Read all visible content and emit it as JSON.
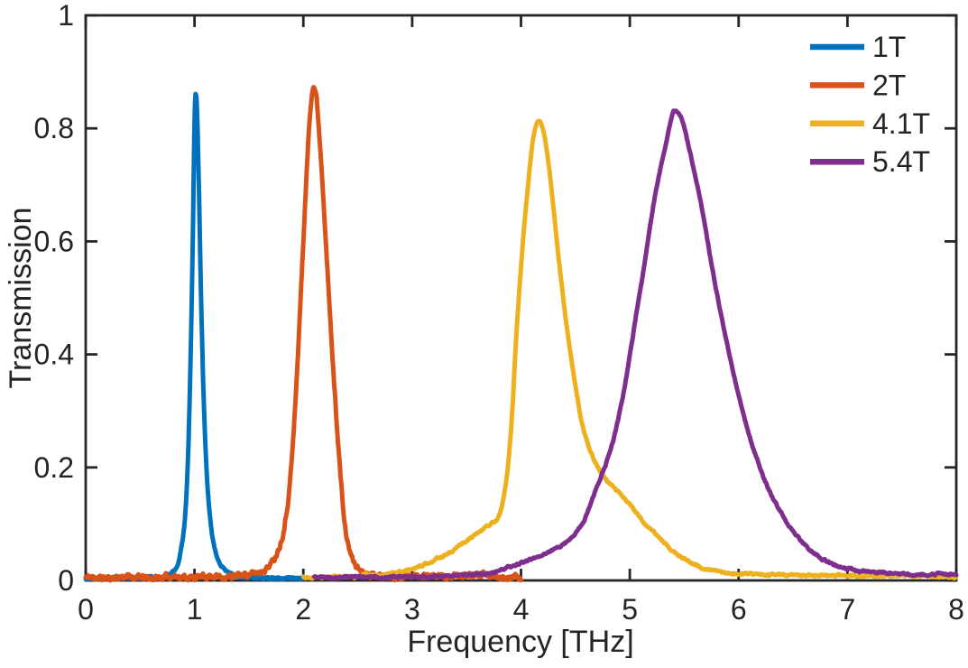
{
  "chart_data": {
    "type": "line",
    "title": "",
    "xlabel": "Frequency [THz]",
    "ylabel": "Transmission",
    "xlim": [
      0,
      8
    ],
    "ylim": [
      0,
      1
    ],
    "xticks": [
      0,
      1,
      2,
      3,
      4,
      5,
      6,
      7,
      8
    ],
    "xtick_labels": [
      "0",
      "1",
      "2",
      "3",
      "4",
      "5",
      "6",
      "7",
      "8"
    ],
    "yticks": [
      0,
      0.2,
      0.4,
      0.6,
      0.8,
      1
    ],
    "ytick_labels": [
      "0",
      "0.2",
      "0.4",
      "0.6",
      "0.8",
      "1"
    ],
    "grid": false,
    "axis_color": "#262626",
    "legend": {
      "position": "top-right",
      "box": false
    },
    "series": [
      {
        "name": "1T",
        "color": "#0072BD",
        "peak_x": 1.01,
        "peak_y": 0.86,
        "noise": 0.0015,
        "seed": 7,
        "points": [
          [
            0,
            0.004
          ],
          [
            0.15,
            0.003
          ],
          [
            0.3,
            0.005
          ],
          [
            0.45,
            0.004
          ],
          [
            0.58,
            0.006
          ],
          [
            0.68,
            0.005
          ],
          [
            0.75,
            0.009
          ],
          [
            0.8,
            0.015
          ],
          [
            0.85,
            0.03
          ],
          [
            0.88,
            0.06
          ],
          [
            0.91,
            0.105
          ],
          [
            0.93,
            0.17
          ],
          [
            0.95,
            0.28
          ],
          [
            0.97,
            0.45
          ],
          [
            0.99,
            0.68
          ],
          [
            1.0,
            0.81
          ],
          [
            1.01,
            0.86
          ],
          [
            1.02,
            0.845
          ],
          [
            1.04,
            0.7
          ],
          [
            1.06,
            0.5
          ],
          [
            1.08,
            0.35
          ],
          [
            1.1,
            0.24
          ],
          [
            1.12,
            0.165
          ],
          [
            1.15,
            0.1
          ],
          [
            1.18,
            0.06
          ],
          [
            1.22,
            0.035
          ],
          [
            1.27,
            0.02
          ],
          [
            1.33,
            0.012
          ],
          [
            1.42,
            0.007
          ],
          [
            1.55,
            0.005
          ],
          [
            1.7,
            0.004
          ],
          [
            1.85,
            0.004
          ],
          [
            2.0,
            0.004
          ]
        ]
      },
      {
        "name": "2T",
        "color": "#D95319",
        "peak_x": 2.09,
        "peak_y": 0.875,
        "noise": 0.0045,
        "seed": 11,
        "points": [
          [
            0,
            0.006
          ],
          [
            0.2,
            0.004
          ],
          [
            0.4,
            0.007
          ],
          [
            0.6,
            0.004
          ],
          [
            0.8,
            0.007
          ],
          [
            1.0,
            0.005
          ],
          [
            1.15,
            0.008
          ],
          [
            1.3,
            0.006
          ],
          [
            1.45,
            0.01
          ],
          [
            1.58,
            0.014
          ],
          [
            1.68,
            0.025
          ],
          [
            1.76,
            0.05
          ],
          [
            1.82,
            0.09
          ],
          [
            1.87,
            0.16
          ],
          [
            1.91,
            0.26
          ],
          [
            1.94,
            0.36
          ],
          [
            1.97,
            0.48
          ],
          [
            2.0,
            0.6
          ],
          [
            2.03,
            0.72
          ],
          [
            2.06,
            0.82
          ],
          [
            2.09,
            0.875
          ],
          [
            2.12,
            0.855
          ],
          [
            2.15,
            0.78
          ],
          [
            2.19,
            0.66
          ],
          [
            2.23,
            0.52
          ],
          [
            2.26,
            0.42
          ],
          [
            2.3,
            0.3
          ],
          [
            2.34,
            0.19
          ],
          [
            2.38,
            0.1
          ],
          [
            2.43,
            0.05
          ],
          [
            2.49,
            0.025
          ],
          [
            2.57,
            0.014
          ],
          [
            2.7,
            0.009
          ],
          [
            2.9,
            0.006
          ],
          [
            3.1,
            0.009
          ],
          [
            3.35,
            0.006
          ],
          [
            3.6,
            0.01
          ],
          [
            3.8,
            0.007
          ],
          [
            4.0,
            0.005
          ]
        ]
      },
      {
        "name": "4.1T",
        "color": "#EDB120",
        "peak_x": 4.16,
        "peak_y": 0.815,
        "noise": 0.002,
        "seed": 3,
        "points": [
          [
            2.0,
            0.006
          ],
          [
            2.15,
            0.005
          ],
          [
            2.3,
            0.007
          ],
          [
            2.45,
            0.005
          ],
          [
            2.58,
            0.011
          ],
          [
            2.66,
            0.006
          ],
          [
            2.8,
            0.013
          ],
          [
            2.92,
            0.016
          ],
          [
            3.05,
            0.024
          ],
          [
            3.2,
            0.036
          ],
          [
            3.35,
            0.05
          ],
          [
            3.5,
            0.07
          ],
          [
            3.62,
            0.086
          ],
          [
            3.72,
            0.1
          ],
          [
            3.8,
            0.115
          ],
          [
            3.86,
            0.17
          ],
          [
            3.91,
            0.27
          ],
          [
            3.96,
            0.44
          ],
          [
            4.01,
            0.58
          ],
          [
            4.06,
            0.69
          ],
          [
            4.11,
            0.78
          ],
          [
            4.16,
            0.815
          ],
          [
            4.21,
            0.79
          ],
          [
            4.27,
            0.71
          ],
          [
            4.33,
            0.6
          ],
          [
            4.4,
            0.48
          ],
          [
            4.48,
            0.37
          ],
          [
            4.56,
            0.28
          ],
          [
            4.66,
            0.22
          ],
          [
            4.78,
            0.18
          ],
          [
            4.9,
            0.155
          ],
          [
            5.0,
            0.135
          ],
          [
            5.12,
            0.105
          ],
          [
            5.24,
            0.082
          ],
          [
            5.37,
            0.056
          ],
          [
            5.5,
            0.038
          ],
          [
            5.62,
            0.026
          ],
          [
            5.75,
            0.018
          ],
          [
            5.9,
            0.013
          ],
          [
            6.1,
            0.011
          ],
          [
            6.4,
            0.01
          ],
          [
            6.8,
            0.009
          ],
          [
            7.2,
            0.008
          ],
          [
            7.6,
            0.008
          ],
          [
            8.0,
            0.007
          ]
        ]
      },
      {
        "name": "5.4T",
        "color": "#7E2F8E",
        "peak_x": 5.41,
        "peak_y": 0.83,
        "noise": 0.002,
        "seed": 5,
        "points": [
          [
            2.1,
            0.006
          ],
          [
            2.3,
            0.005
          ],
          [
            2.5,
            0.007
          ],
          [
            2.7,
            0.005
          ],
          [
            2.9,
            0.007
          ],
          [
            3.1,
            0.006
          ],
          [
            3.3,
            0.008
          ],
          [
            3.52,
            0.011
          ],
          [
            3.7,
            0.012
          ],
          [
            3.86,
            0.022
          ],
          [
            4.02,
            0.032
          ],
          [
            4.19,
            0.045
          ],
          [
            4.35,
            0.06
          ],
          [
            4.44,
            0.072
          ],
          [
            4.52,
            0.088
          ],
          [
            4.6,
            0.115
          ],
          [
            4.66,
            0.147
          ],
          [
            4.75,
            0.19
          ],
          [
            4.85,
            0.25
          ],
          [
            4.95,
            0.34
          ],
          [
            5.05,
            0.46
          ],
          [
            5.15,
            0.58
          ],
          [
            5.25,
            0.7
          ],
          [
            5.33,
            0.77
          ],
          [
            5.41,
            0.83
          ],
          [
            5.48,
            0.815
          ],
          [
            5.55,
            0.76
          ],
          [
            5.65,
            0.67
          ],
          [
            5.75,
            0.56
          ],
          [
            5.85,
            0.46
          ],
          [
            5.95,
            0.37
          ],
          [
            6.05,
            0.29
          ],
          [
            6.15,
            0.225
          ],
          [
            6.28,
            0.16
          ],
          [
            6.42,
            0.11
          ],
          [
            6.55,
            0.075
          ],
          [
            6.7,
            0.048
          ],
          [
            6.85,
            0.03
          ],
          [
            7.0,
            0.021
          ],
          [
            7.15,
            0.016
          ],
          [
            7.35,
            0.013
          ],
          [
            7.6,
            0.011
          ],
          [
            8.0,
            0.011
          ]
        ]
      }
    ]
  }
}
